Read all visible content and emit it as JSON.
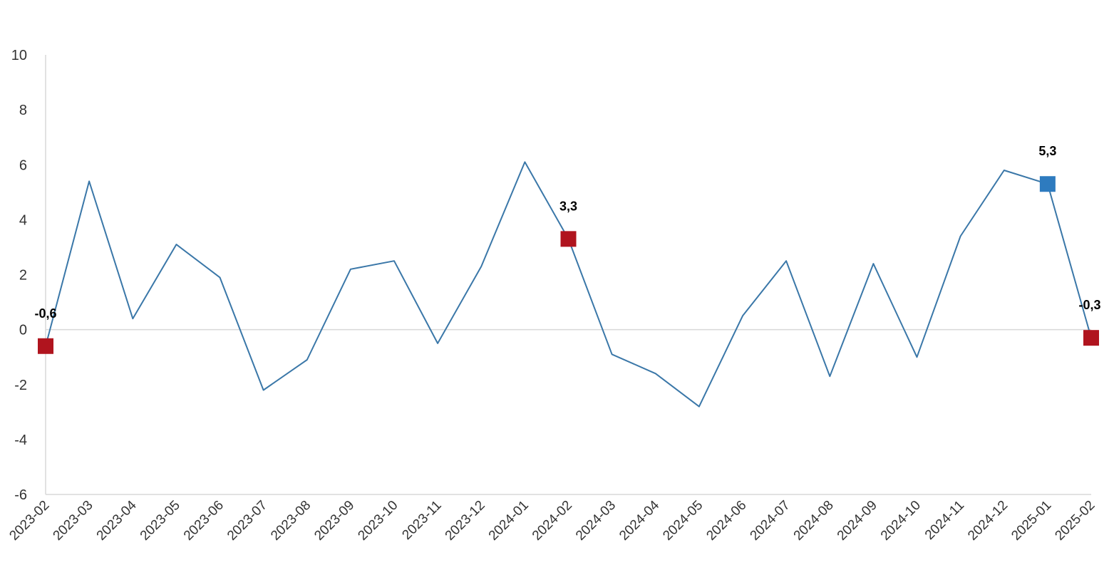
{
  "chart_data": {
    "type": "line",
    "title": "",
    "xlabel": "",
    "ylabel": "",
    "ylim": [
      -6,
      10
    ],
    "yticks": [
      -6,
      -4,
      -2,
      0,
      2,
      4,
      6,
      8,
      10
    ],
    "ytick_labels": [
      "-6",
      "-4",
      "-2",
      "0",
      "2",
      "4",
      "6",
      "8",
      "10"
    ],
    "grid": false,
    "legend": "none",
    "line_color": "#3a77a8",
    "categories": [
      "2023-02",
      "2023-03",
      "2023-04",
      "2023-05",
      "2023-06",
      "2023-07",
      "2023-08",
      "2023-09",
      "2023-10",
      "2023-11",
      "2023-12",
      "2024-01",
      "2024-02",
      "2024-03",
      "2024-04",
      "2024-05",
      "2024-06",
      "2024-07",
      "2024-08",
      "2024-09",
      "2024-10",
      "2024-11",
      "2024-12",
      "2025-01",
      "2025-02"
    ],
    "series": [
      {
        "values": [
          -0.6,
          5.4,
          0.4,
          3.1,
          1.9,
          -2.2,
          -1.1,
          2.2,
          2.5,
          -0.5,
          2.3,
          6.1,
          3.3,
          -0.9,
          -1.6,
          -2.8,
          0.5,
          2.5,
          -1.7,
          2.4,
          -1.0,
          3.4,
          5.8,
          5.3,
          -0.3
        ]
      }
    ],
    "highlighted_points": [
      {
        "category": "2023-02",
        "value": -0.6,
        "label": "-0,6",
        "color": "#b0141e"
      },
      {
        "category": "2024-02",
        "value": 3.3,
        "label": "3,3",
        "color": "#b0141e"
      },
      {
        "category": "2025-01",
        "value": 5.3,
        "label": "5,3",
        "color": "#2e7bbf"
      },
      {
        "category": "2025-02",
        "value": -0.3,
        "label": "-0,3",
        "color": "#b0141e"
      }
    ]
  }
}
